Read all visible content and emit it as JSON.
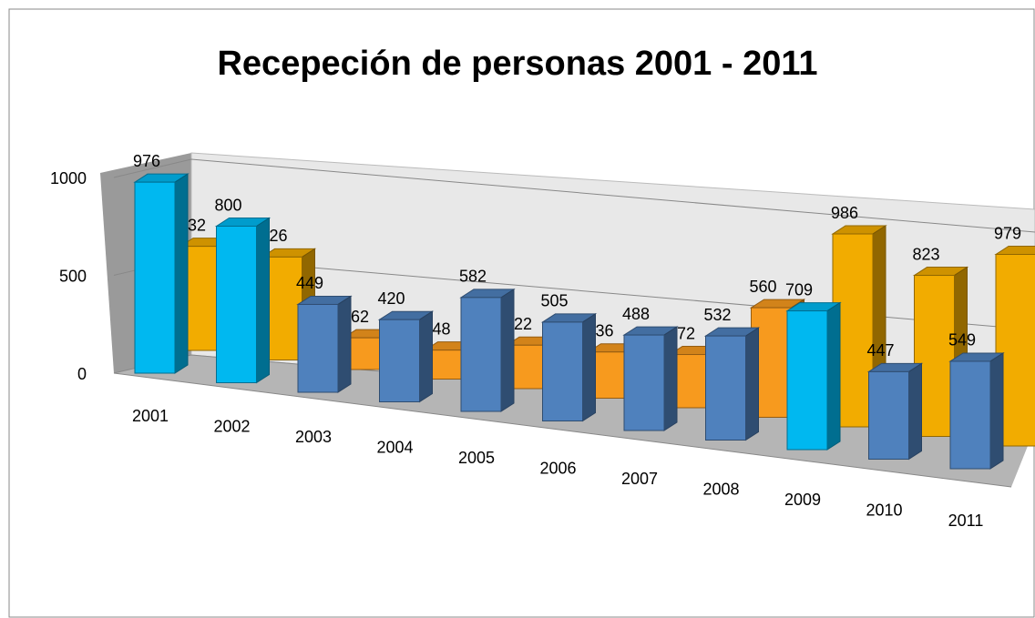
{
  "chart_data": {
    "type": "bar3d",
    "title": "Recepeción de personas 2001 - 2011",
    "categories": [
      "2001",
      "2002",
      "2003",
      "2004",
      "2005",
      "2006",
      "2007",
      "2008",
      "2009",
      "2010",
      "2011"
    ],
    "series": [
      {
        "colors": [
          "#f2ac00",
          "#f2ac00",
          "#f79a1e",
          "#f79a1e",
          "#f79a1e",
          "#f79a1e",
          "#f79a1e",
          "#f79a1e",
          "#f2ac00",
          "#f2ac00",
          "#f2ac00"
        ],
        "values": [
          532,
          526,
          162,
          148,
          222,
          236,
          272,
          560,
          986,
          823,
          979
        ]
      },
      {
        "colors": [
          "#00b8f0",
          "#00b8f0",
          "#4f81bd",
          "#4f81bd",
          "#4f81bd",
          "#4f81bd",
          "#4f81bd",
          "#4f81bd",
          "#00b8f0",
          "#4f81bd",
          "#4f81bd"
        ],
        "values": [
          976,
          800,
          449,
          420,
          582,
          505,
          488,
          532,
          709,
          447,
          549
        ]
      }
    ],
    "ylim": [
      0,
      1000
    ],
    "yticks": [
      0,
      500,
      1000
    ],
    "grid": true
  }
}
